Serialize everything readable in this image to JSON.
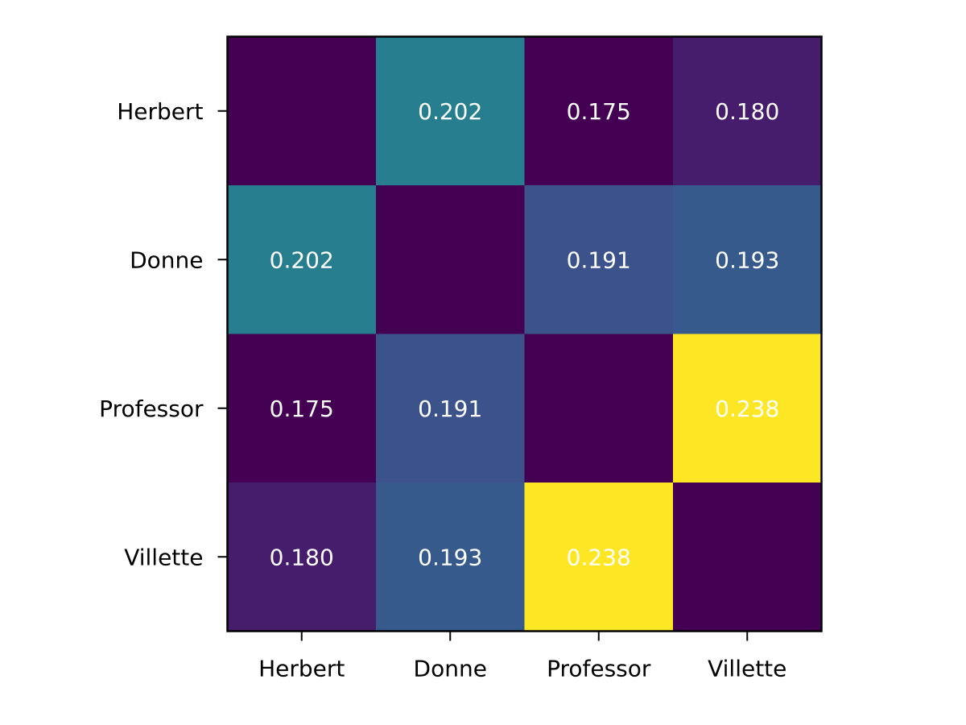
{
  "chart_data": {
    "type": "heatmap",
    "rows": [
      "Herbert",
      "Donne",
      "Professor",
      "Villette"
    ],
    "columns": [
      "Herbert",
      "Donne",
      "Professor",
      "Villette"
    ],
    "values": [
      [
        null,
        0.202,
        0.175,
        0.18
      ],
      [
        0.202,
        null,
        0.191,
        0.193
      ],
      [
        0.175,
        0.191,
        null,
        0.238
      ],
      [
        0.18,
        0.193,
        0.238,
        null
      ]
    ],
    "cell_labels": [
      [
        "",
        "0.202",
        "0.175",
        "0.180"
      ],
      [
        "0.202",
        "",
        "0.191",
        "0.193"
      ],
      [
        "0.175",
        "0.191",
        "",
        "0.238"
      ],
      [
        "0.180",
        "0.193",
        "0.238",
        ""
      ]
    ],
    "colormap": "viridis",
    "color_range": [
      0.175,
      0.238
    ],
    "diagonal_color": "#440154",
    "label_color": "#ffffff",
    "title": "",
    "xlabel": "",
    "ylabel": "",
    "colorbar": false,
    "grid": false
  }
}
